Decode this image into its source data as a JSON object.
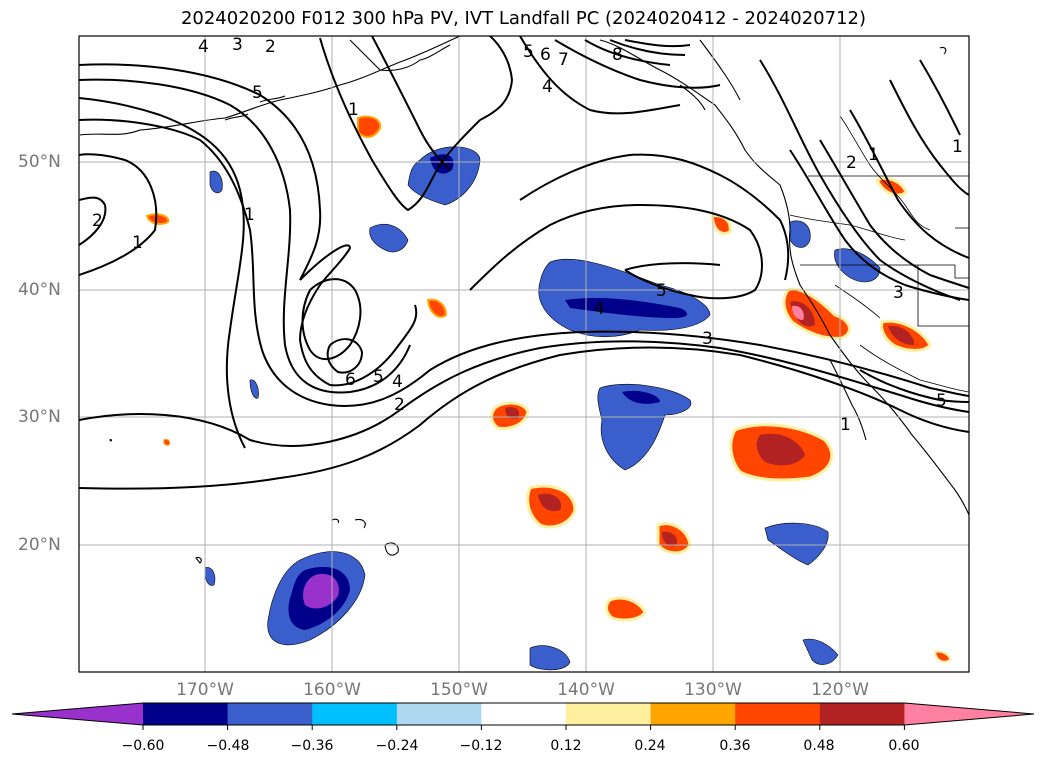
{
  "title": "2024020200 F012 300 hPa PV, IVT Landfall PC (2024020412 - 2024020712)",
  "lat_labels": [
    {
      "text": "50°N",
      "lat": 50
    },
    {
      "text": "40°N",
      "lat": 40
    },
    {
      "text": "30°N",
      "lat": 30
    },
    {
      "text": "20°N",
      "lat": 20
    }
  ],
  "lon_labels": [
    {
      "text": "170°W",
      "lon": -170
    },
    {
      "text": "160°W",
      "lon": -160
    },
    {
      "text": "150°W",
      "lon": -150
    },
    {
      "text": "140°W",
      "lon": -140
    },
    {
      "text": "130°W",
      "lon": -130
    },
    {
      "text": "120°W",
      "lon": -120
    }
  ],
  "map_extent": {
    "lon": [
      -180,
      -110
    ],
    "lat": [
      10,
      59
    ]
  },
  "pv_contour_labels": [
    "4",
    "3",
    "2",
    "5",
    "1",
    "5",
    "6",
    "7",
    "8",
    "4",
    "2",
    "1",
    "1",
    "1",
    "2",
    "1",
    "3",
    "5",
    "4",
    "3",
    "6",
    "5",
    "4",
    "2",
    "1",
    "5"
  ],
  "colorbar": {
    "colors": [
      "#9932cc",
      "#00008b",
      "#3a5fcd",
      "#00bfff",
      "#add8f0",
      "#ffffff",
      "#fff0a0",
      "#ffa500",
      "#ff4500",
      "#b22222",
      "#ff80a0"
    ],
    "ticks": [
      "−0.60",
      "−0.48",
      "−0.36",
      "−0.24",
      "−0.12",
      "0.12",
      "0.24",
      "0.36",
      "0.48",
      "0.60"
    ]
  }
}
